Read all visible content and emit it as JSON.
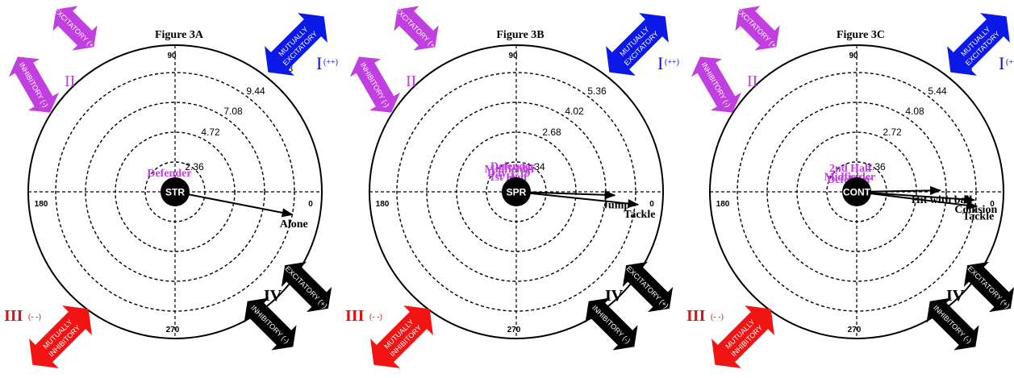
{
  "colors": {
    "excitatory_single": "#c13ee0",
    "mutually_excitatory": "#0a18e8",
    "mutually_inhibitory": "#f21313",
    "black": "#000000",
    "quadrant_purple": "#c13ee0",
    "quadrant_blue": "#1010d8",
    "quadrant_red": "#e01010"
  },
  "quadrants": {
    "I_label": "I",
    "I_sup": "(++)",
    "II_label": "II",
    "III_label": "III",
    "III_sup": "(- -)",
    "IV_label": "IV"
  },
  "arrow_labels": {
    "excitatory_plus": "EXCITATORY (+)",
    "inhibitory_minus": "INHIBITORY (-)",
    "mutually": "MUTUALLY",
    "excitatory": "EXCITATORY",
    "inhibitory": "INHIBITORY"
  },
  "angles": {
    "a0": "0",
    "a90": "90",
    "a180": "180",
    "a270": "270"
  },
  "panels": [
    {
      "title": "Figure 3A",
      "center_label": "STR",
      "rings": [
        "2.36",
        "4.72",
        "7.08",
        "9.44",
        "11.8"
      ],
      "vectors": [
        {
          "label": "Defender",
          "angle_deg": 117,
          "length": 0.42,
          "color": "purple"
        },
        {
          "label": "Alone",
          "angle_deg": -11,
          "length": 4.0,
          "color": "black"
        }
      ]
    },
    {
      "title": "Figure 3B",
      "center_label": "SPR",
      "rings": [
        "1.34",
        "2.68",
        "4.02",
        "5.36",
        "6.7"
      ],
      "vectors": [
        {
          "label": "Defender",
          "angle_deg": 101,
          "length": 0.62,
          "color": "purple"
        },
        {
          "label": "Midfielder",
          "angle_deg": 112,
          "length": 0.55,
          "color": "purple"
        },
        {
          "label": "Day 1-19",
          "angle_deg": 124,
          "length": 0.45,
          "color": "purple"
        },
        {
          "label": "1st Half",
          "angle_deg": 138,
          "length": 0.36,
          "color": "purple"
        },
        {
          "label": "Jump",
          "angle_deg": -2,
          "length": 3.3,
          "color": "black"
        },
        {
          "label": "Tackle",
          "angle_deg": -6,
          "length": 4.1,
          "color": "black"
        }
      ]
    },
    {
      "title": "Figure 3C",
      "center_label": "CONT",
      "rings": [
        "1.36",
        "2.72",
        "4.08",
        "5.44",
        "6.8"
      ],
      "vectors": [
        {
          "label": "2nd Half",
          "angle_deg": 111,
          "length": 0.58,
          "color": "purple"
        },
        {
          "label": "Midfielder",
          "angle_deg": 132,
          "length": 0.35,
          "color": "purple"
        },
        {
          "label": "Defender",
          "angle_deg": 146,
          "length": 0.3,
          "color": "purple"
        },
        {
          "label": "Hit with ball",
          "angle_deg": 1,
          "length": 2.8,
          "color": "black"
        },
        {
          "label": "Collision",
          "angle_deg": -4,
          "length": 3.95,
          "color": "black"
        },
        {
          "label": "Tackle",
          "angle_deg": -7,
          "length": 4.05,
          "color": "black"
        }
      ]
    }
  ]
}
